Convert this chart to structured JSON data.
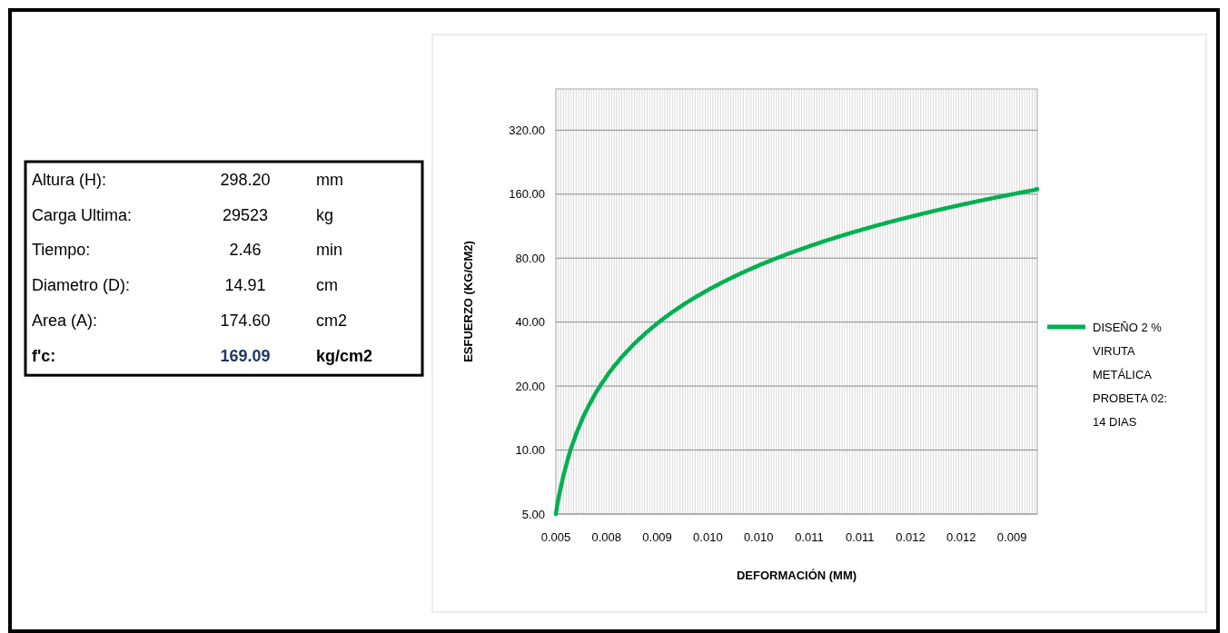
{
  "chart_data": [
    {
      "type": "other",
      "annotations": [
        "Altura (H):",
        "298.20",
        "mm",
        "Carga Ultima:",
        "29523",
        "kg",
        "Tiempo:",
        "2.46",
        "min",
        "Diametro (D):",
        "14.91",
        "cm",
        "Area (A):",
        "174.60",
        "cm2",
        "f'c:",
        "169.09",
        "kg/cm2"
      ]
    },
    {
      "type": "line",
      "xlabel": "DEFORMACIÓN (MM)",
      "ylabel": "ESFUERZO (KG/CM2)",
      "log": true,
      "grid": true,
      "legend": "right",
      "marker": "none",
      "line_style": "solid",
      "ylim": [
        5,
        500
      ],
      "yticks": [
        {
          "value": 5,
          "label": "5.00"
        },
        {
          "value": 10,
          "label": "10.00"
        },
        {
          "value": 20,
          "label": "20.00"
        },
        {
          "value": 40,
          "label": "40.00"
        },
        {
          "value": 80,
          "label": "80.00"
        },
        {
          "value": 160,
          "label": "160.00"
        },
        {
          "value": 320,
          "label": "320.00"
        }
      ],
      "categories": [
        "0.005",
        null,
        null,
        null,
        null,
        null,
        null,
        null,
        null,
        null,
        null,
        null,
        null,
        null,
        null,
        null,
        null,
        null,
        null,
        null,
        "0.008",
        null,
        null,
        null,
        null,
        null,
        null,
        null,
        null,
        null,
        null,
        null,
        null,
        null,
        null,
        null,
        null,
        null,
        null,
        null,
        "0.009",
        null,
        null,
        null,
        null,
        null,
        null,
        null,
        null,
        null,
        null,
        null,
        null,
        null,
        null,
        null,
        null,
        null,
        null,
        null,
        "0.010",
        null,
        null,
        null,
        null,
        null,
        null,
        null,
        null,
        null,
        null,
        null,
        null,
        null,
        null,
        null,
        null,
        null,
        null,
        null,
        "0.010",
        null,
        null,
        null,
        null,
        null,
        null,
        null,
        null,
        null,
        null,
        null,
        null,
        null,
        null,
        null,
        null,
        null,
        null,
        null,
        "0.011",
        null,
        null,
        null,
        null,
        null,
        null,
        null,
        null,
        null,
        null,
        null,
        null,
        null,
        null,
        null,
        null,
        null,
        null,
        null,
        "0.011",
        null,
        null,
        null,
        null,
        null,
        null,
        null,
        null,
        null,
        null,
        null,
        null,
        null,
        null,
        null,
        null,
        null,
        null,
        null,
        "0.012",
        null,
        null,
        null,
        null,
        null,
        null,
        null,
        null,
        null,
        null,
        null,
        null,
        null,
        null,
        null,
        null,
        null,
        null,
        null,
        "0.012",
        null,
        null,
        null,
        null,
        null,
        null,
        null,
        null,
        null,
        null,
        null,
        null,
        null,
        null,
        null,
        null,
        null,
        null,
        null,
        "0.009",
        null,
        null,
        null,
        null,
        null,
        null,
        null,
        null,
        null,
        null
      ],
      "series": [
        {
          "name": "DISEÑO 2 % VIRUTA METÁLICA PROBETA 02: 14 DIAS",
          "color": "#00b050",
          "values": [
            5.0,
            5.9,
            6.7,
            7.6,
            8.4,
            9.3,
            10.2,
            11.0,
            11.9,
            12.7,
            13.6,
            14.5,
            15.3,
            16.2,
            17.0,
            17.9,
            18.8,
            19.6,
            20.5,
            21.3,
            22.2,
            23.1,
            23.9,
            24.8,
            25.6,
            26.5,
            27.4,
            28.2,
            29.1,
            29.9,
            30.8,
            31.7,
            32.5,
            33.4,
            34.2,
            35.1,
            36.0,
            36.8,
            37.7,
            38.5,
            39.4,
            40.3,
            41.1,
            42.0,
            42.8,
            43.7,
            44.6,
            45.4,
            46.3,
            47.1,
            48.0,
            48.9,
            49.7,
            50.6,
            51.4,
            52.3,
            53.2,
            54.0,
            54.9,
            55.7,
            56.6,
            57.5,
            58.3,
            59.2,
            60.0,
            60.9,
            61.8,
            62.6,
            63.5,
            64.3,
            65.2,
            66.1,
            66.9,
            67.8,
            68.6,
            69.5,
            70.4,
            71.2,
            72.1,
            72.9,
            73.8,
            74.7,
            75.5,
            76.4,
            77.2,
            78.1,
            79.0,
            79.8,
            80.7,
            81.5,
            82.4,
            83.3,
            84.1,
            85.0,
            85.8,
            86.7,
            87.6,
            88.4,
            89.3,
            90.1,
            91.0,
            91.9,
            92.7,
            93.6,
            94.4,
            95.3,
            96.2,
            97.0,
            97.9,
            98.7,
            99.6,
            100.5,
            101.3,
            102.2,
            103.0,
            103.9,
            104.8,
            105.6,
            106.5,
            107.3,
            108.2,
            109.1,
            109.9,
            110.8,
            111.6,
            112.5,
            113.4,
            114.2,
            115.1,
            115.9,
            116.8,
            117.7,
            118.5,
            119.4,
            120.2,
            121.1,
            122.0,
            122.8,
            123.7,
            124.5,
            125.4,
            126.3,
            127.1,
            128.0,
            128.8,
            129.7,
            130.6,
            131.4,
            132.3,
            133.1,
            134.0,
            134.9,
            135.7,
            136.6,
            137.4,
            138.3,
            139.2,
            140.0,
            140.9,
            141.7,
            142.6,
            143.5,
            144.3,
            145.2,
            146.0,
            146.9,
            147.8,
            148.6,
            149.5,
            150.3,
            151.2,
            152.1,
            152.9,
            153.8,
            154.6,
            155.5,
            156.4,
            157.2,
            158.1,
            158.9,
            159.8,
            160.7,
            161.5,
            162.4,
            163.2,
            164.1,
            165.0,
            165.8,
            166.7,
            167.5,
            169.1
          ]
        }
      ]
    }
  ]
}
